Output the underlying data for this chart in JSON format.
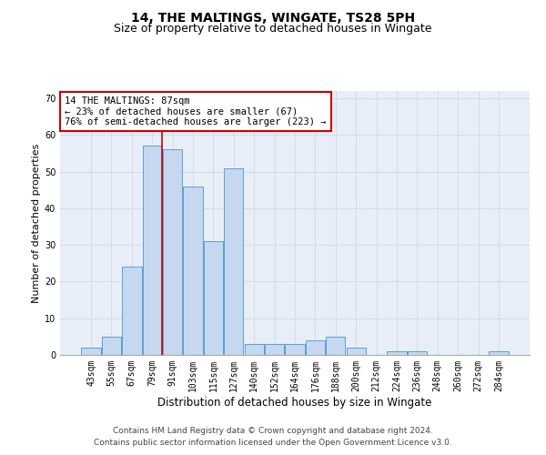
{
  "title_line1": "14, THE MALTINGS, WINGATE, TS28 5PH",
  "title_line2": "Size of property relative to detached houses in Wingate",
  "xlabel": "Distribution of detached houses by size in Wingate",
  "ylabel": "Number of detached properties",
  "categories": [
    "43sqm",
    "55sqm",
    "67sqm",
    "79sqm",
    "91sqm",
    "103sqm",
    "115sqm",
    "127sqm",
    "140sqm",
    "152sqm",
    "164sqm",
    "176sqm",
    "188sqm",
    "200sqm",
    "212sqm",
    "224sqm",
    "236sqm",
    "248sqm",
    "260sqm",
    "272sqm",
    "284sqm"
  ],
  "values": [
    2,
    5,
    24,
    57,
    56,
    46,
    31,
    51,
    3,
    3,
    3,
    4,
    5,
    2,
    0,
    1,
    1,
    0,
    0,
    0,
    1
  ],
  "bar_color": "#c5d8f0",
  "bar_edge_color": "#5a9fd4",
  "highlight_line_color": "#cc0000",
  "annotation_box_text": "14 THE MALTINGS: 87sqm\n← 23% of detached houses are smaller (67)\n76% of semi-detached houses are larger (223) →",
  "annotation_box_color": "#cc0000",
  "ylim": [
    0,
    72
  ],
  "yticks": [
    0,
    10,
    20,
    30,
    40,
    50,
    60,
    70
  ],
  "grid_color": "#d0d8e8",
  "background_color": "#e8eef8",
  "footer_line1": "Contains HM Land Registry data © Crown copyright and database right 2024.",
  "footer_line2": "Contains public sector information licensed under the Open Government Licence v3.0.",
  "title_fontsize": 10,
  "subtitle_fontsize": 9,
  "xlabel_fontsize": 8.5,
  "ylabel_fontsize": 8,
  "tick_fontsize": 7,
  "annotation_fontsize": 7.5,
  "footer_fontsize": 6.5
}
